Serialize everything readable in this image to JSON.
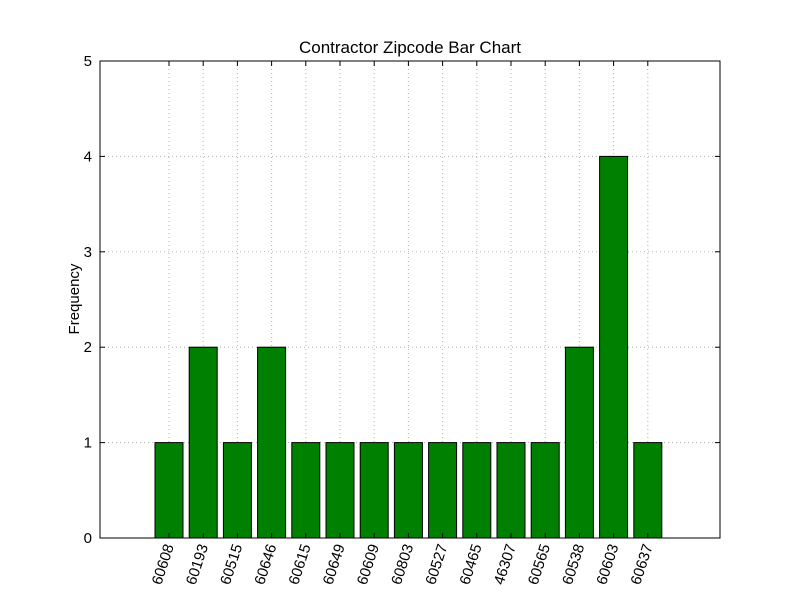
{
  "chart_data": {
    "type": "bar",
    "title": "Contractor Zipcode Bar Chart",
    "xlabel": "",
    "ylabel": "Frequency",
    "categories": [
      "60608",
      "60193",
      "60515",
      "60646",
      "60615",
      "60649",
      "60609",
      "60803",
      "60527",
      "60465",
      "46307",
      "60565",
      "60538",
      "60603",
      "60637"
    ],
    "values": [
      1,
      2,
      1,
      2,
      1,
      1,
      1,
      1,
      1,
      1,
      1,
      1,
      2,
      4,
      1
    ],
    "ylim": [
      0,
      5
    ],
    "yticks": [
      0,
      1,
      2,
      3,
      4,
      5
    ],
    "grid": true,
    "legend": "none",
    "bar_color": "#008000",
    "bar_edge_color": "#000000",
    "grid_color": "#b0b0b0"
  }
}
